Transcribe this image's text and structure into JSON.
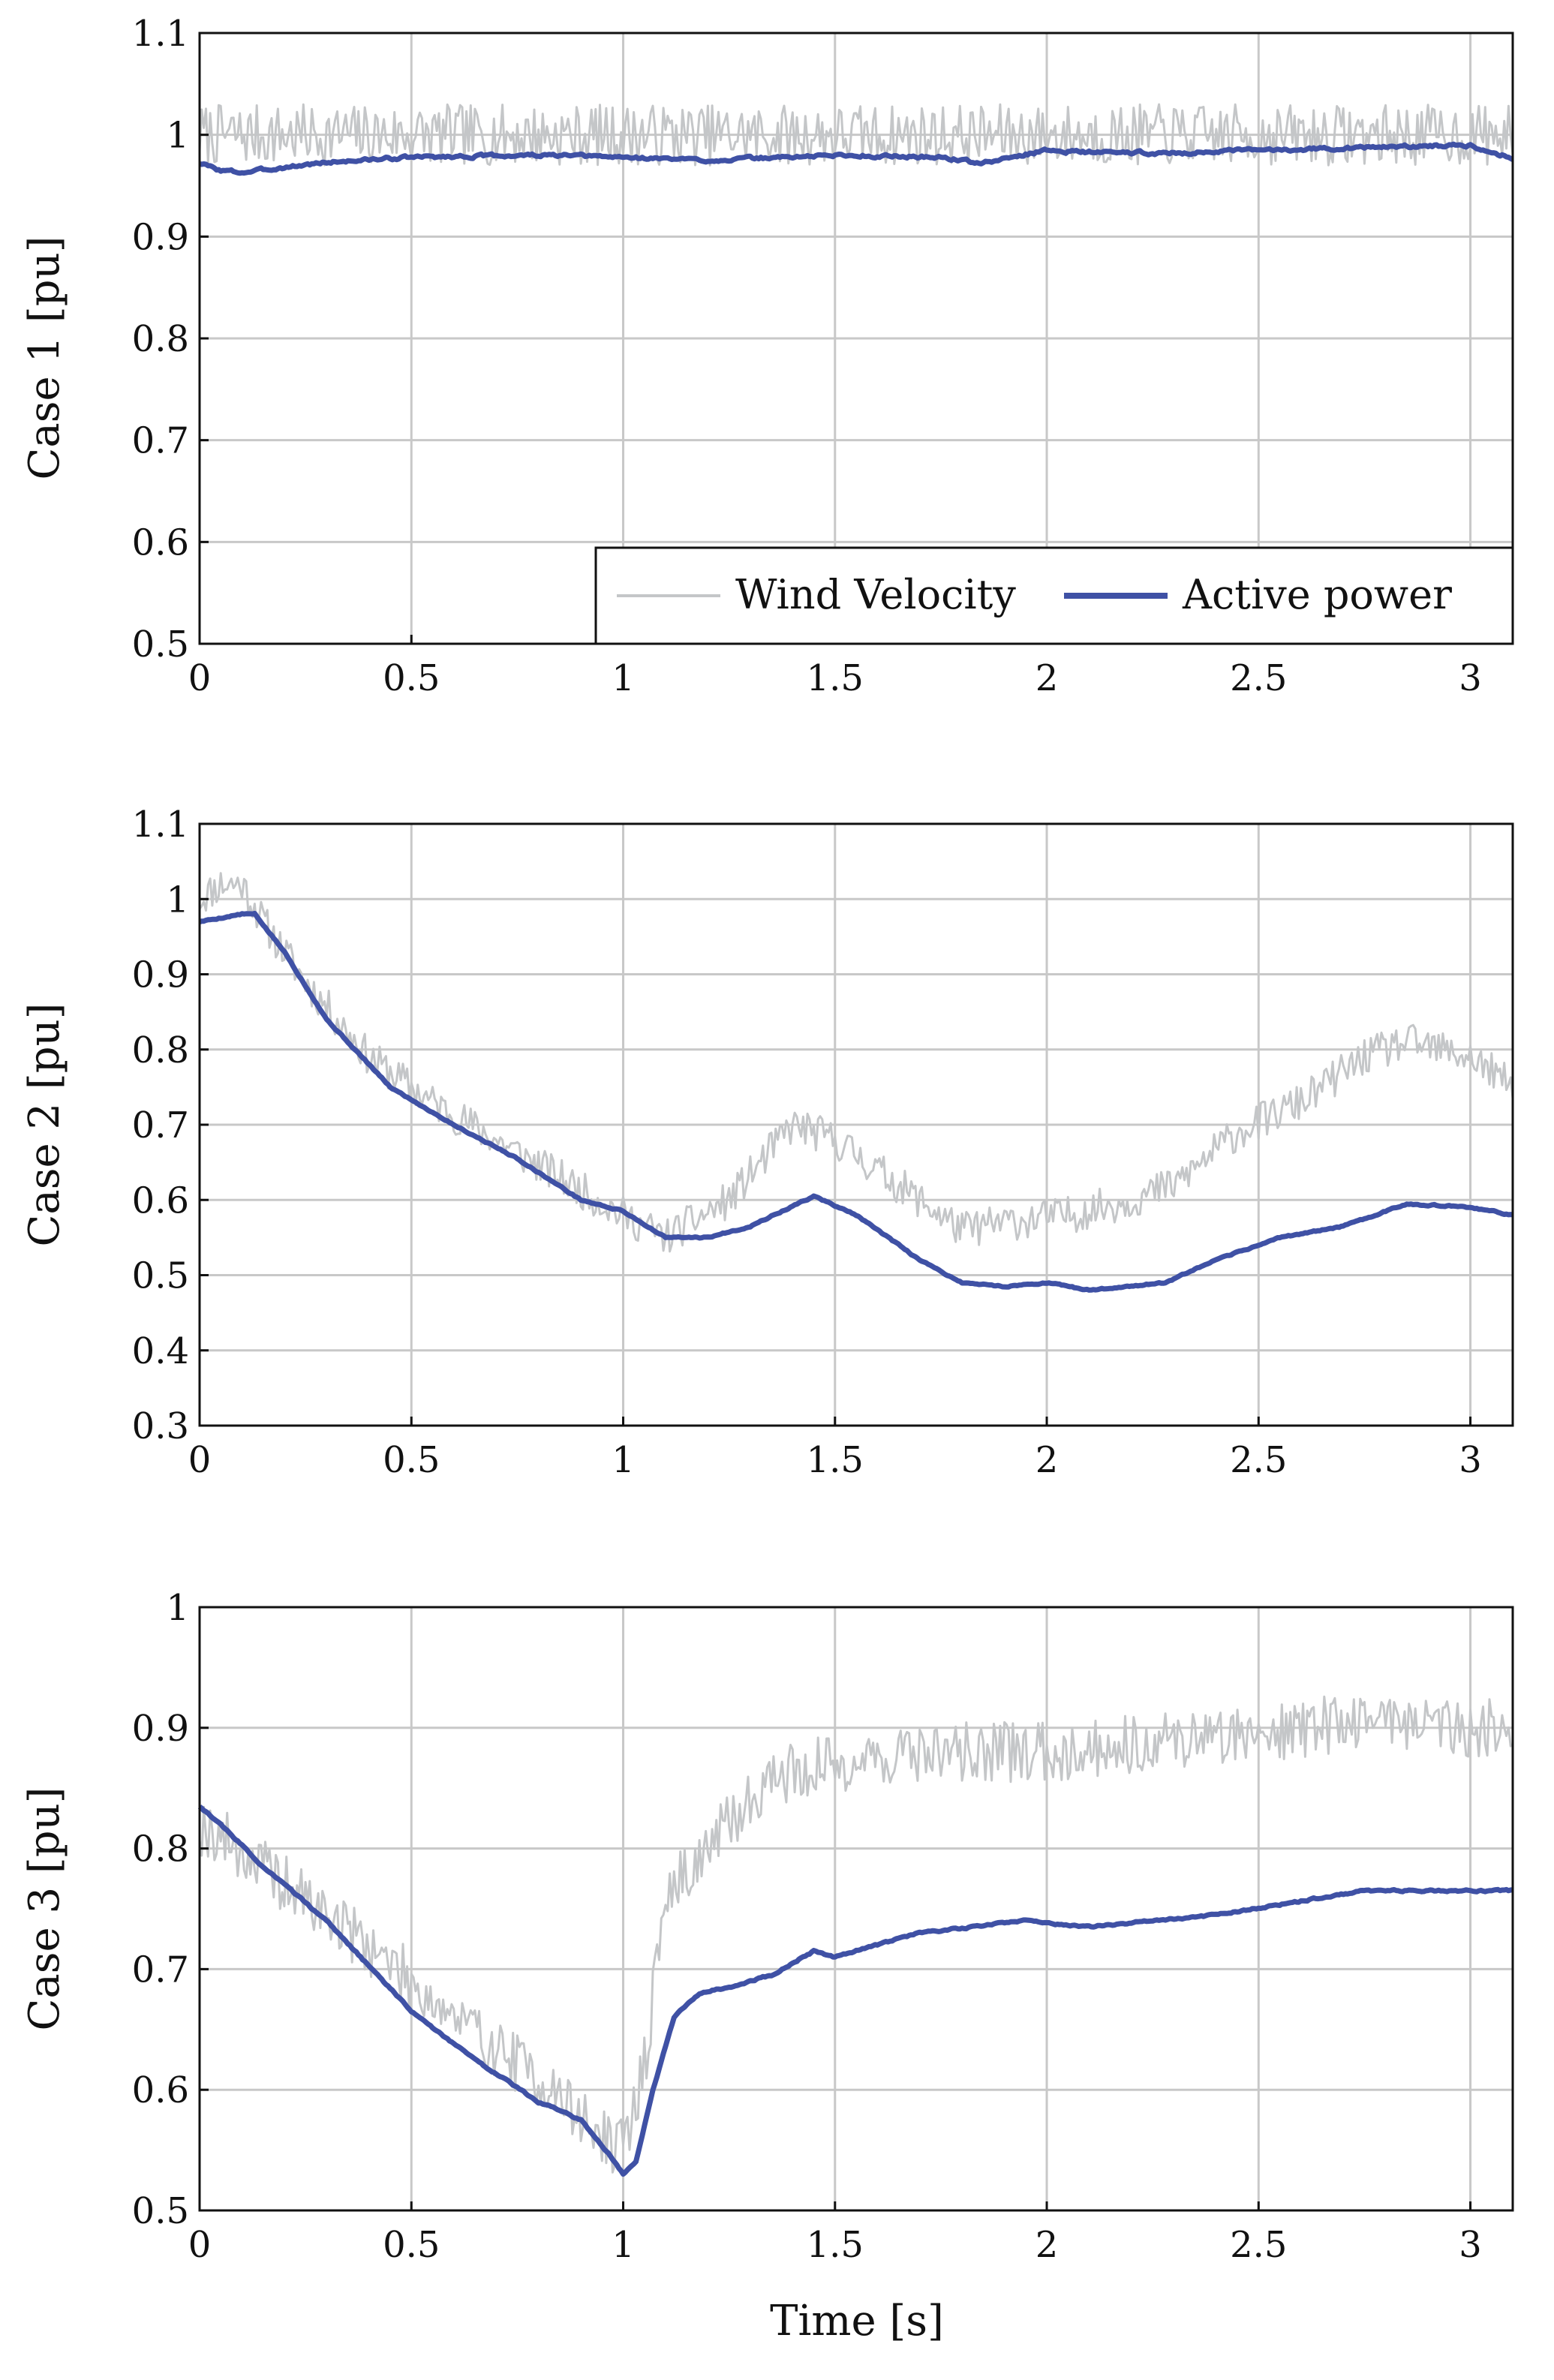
{
  "figure": {
    "xlabel": "Time [s]",
    "colors": {
      "wind": "#c4c6c8",
      "power": "#3f51a5",
      "grid": "#c8c8c8",
      "axis": "#111111"
    },
    "legend": {
      "placement": "bottom-right of top panel",
      "entries": [
        "Wind Velocity",
        "Active power"
      ]
    }
  },
  "chart_data": [
    {
      "type": "line",
      "ylabel": "Case 1 [pu]",
      "xlim": [
        0,
        3.1
      ],
      "ylim": [
        0.5,
        1.1
      ],
      "xticks": [
        0,
        0.5,
        1,
        1.5,
        2,
        2.5,
        3
      ],
      "xtick_labels": [
        "0",
        "0.5",
        "1",
        "1.5",
        "2",
        "2.5",
        "3"
      ],
      "yticks": [
        0.5,
        0.6,
        0.7,
        0.8,
        0.9,
        1,
        1.1
      ],
      "ytick_labels": [
        "0.5",
        "0.6",
        "0.7",
        "0.8",
        "0.9",
        "1",
        "1.1"
      ],
      "grid": true,
      "legend": [
        "Wind Velocity",
        "Active power"
      ],
      "series": [
        {
          "name": "Wind Velocity",
          "color": "#c4c6c8",
          "noise": 0.03,
          "seed": 7,
          "x": [
            0,
            0.2,
            0.5,
            1.0,
            1.5,
            2.0,
            2.5,
            3.0,
            3.1
          ],
          "values": [
            1.0,
            1.0,
            1.0,
            1.0,
            1.0,
            1.0,
            1.0,
            1.0,
            1.0
          ]
        },
        {
          "name": "Active power",
          "color": "#3f51a5",
          "noise": 0.003,
          "seed": 3,
          "x": [
            0,
            0.05,
            0.1,
            0.3,
            0.5,
            0.8,
            1.0,
            1.2,
            1.5,
            1.75,
            1.85,
            2.0,
            2.1,
            2.3,
            2.5,
            2.8,
            3.0,
            3.1
          ],
          "values": [
            0.972,
            0.965,
            0.963,
            0.973,
            0.978,
            0.98,
            0.978,
            0.975,
            0.98,
            0.978,
            0.972,
            0.985,
            0.983,
            0.982,
            0.985,
            0.988,
            0.99,
            0.977
          ]
        }
      ]
    },
    {
      "type": "line",
      "ylabel": "Case 2 [pu]",
      "xlim": [
        0,
        3.1
      ],
      "ylim": [
        0.3,
        1.1
      ],
      "xticks": [
        0,
        0.5,
        1,
        1.5,
        2,
        2.5,
        3
      ],
      "xtick_labels": [
        "0",
        "0.5",
        "1",
        "1.5",
        "2",
        "2.5",
        "3"
      ],
      "yticks": [
        0.3,
        0.4,
        0.5,
        0.6,
        0.7,
        0.8,
        0.9,
        1,
        1.1
      ],
      "ytick_labels": [
        "0.3",
        "0.4",
        "0.5",
        "0.6",
        "0.7",
        "0.8",
        "0.9",
        "1",
        "1.1"
      ],
      "grid": true,
      "series": [
        {
          "name": "Wind Velocity",
          "color": "#c4c6c8",
          "noise": 0.025,
          "seed": 11,
          "x": [
            0,
            0.05,
            0.1,
            0.15,
            0.25,
            0.4,
            0.55,
            0.7,
            0.85,
            1.0,
            1.1,
            1.25,
            1.4,
            1.5,
            1.65,
            1.8,
            1.9,
            2.05,
            2.2,
            2.3,
            2.45,
            2.6,
            2.75,
            2.85,
            3.0,
            3.1
          ],
          "values": [
            1.0,
            1.02,
            1.02,
            0.97,
            0.89,
            0.79,
            0.73,
            0.68,
            0.63,
            0.58,
            0.55,
            0.6,
            0.7,
            0.68,
            0.62,
            0.56,
            0.57,
            0.58,
            0.6,
            0.62,
            0.69,
            0.73,
            0.79,
            0.81,
            0.79,
            0.75
          ]
        },
        {
          "name": "Active power",
          "color": "#3f51a5",
          "noise": 0.002,
          "seed": 5,
          "x": [
            0,
            0.05,
            0.1,
            0.13,
            0.2,
            0.3,
            0.45,
            0.6,
            0.75,
            0.9,
            1.0,
            1.1,
            1.2,
            1.3,
            1.45,
            1.55,
            1.7,
            1.8,
            1.9,
            2.0,
            2.1,
            2.28,
            2.4,
            2.55,
            2.7,
            2.85,
            3.0,
            3.1
          ],
          "values": [
            0.97,
            0.975,
            0.98,
            0.98,
            0.93,
            0.84,
            0.75,
            0.7,
            0.655,
            0.6,
            0.585,
            0.55,
            0.55,
            0.565,
            0.605,
            0.58,
            0.52,
            0.49,
            0.485,
            0.49,
            0.48,
            0.49,
            0.52,
            0.55,
            0.565,
            0.595,
            0.59,
            0.58
          ]
        }
      ]
    },
    {
      "type": "line",
      "ylabel": "Case 3 [pu]",
      "xlim": [
        0,
        3.1
      ],
      "ylim": [
        0.5,
        1.0
      ],
      "xticks": [
        0,
        0.5,
        1,
        1.5,
        2,
        2.5,
        3
      ],
      "xtick_labels": [
        "0",
        "0.5",
        "1",
        "1.5",
        "2",
        "2.5",
        "3"
      ],
      "yticks": [
        0.5,
        0.6,
        0.7,
        0.8,
        0.9,
        1
      ],
      "ytick_labels": [
        "0.5",
        "0.6",
        "0.7",
        "0.8",
        "0.9",
        "1"
      ],
      "grid": true,
      "series": [
        {
          "name": "Wind Velocity",
          "color": "#c4c6c8",
          "noise": 0.025,
          "seed": 19,
          "x": [
            0,
            0.05,
            0.2,
            0.4,
            0.6,
            0.8,
            0.95,
            1.0,
            1.05,
            1.1,
            1.2,
            1.35,
            1.5,
            1.7,
            2.0,
            2.3,
            2.6,
            2.8,
            3.0,
            3.1
          ],
          "values": [
            0.82,
            0.81,
            0.77,
            0.72,
            0.66,
            0.61,
            0.56,
            0.55,
            0.62,
            0.76,
            0.8,
            0.86,
            0.87,
            0.88,
            0.88,
            0.89,
            0.9,
            0.91,
            0.9,
            0.9
          ]
        },
        {
          "name": "Active power",
          "color": "#3f51a5",
          "noise": 0.0015,
          "seed": 2,
          "x": [
            0,
            0.05,
            0.15,
            0.3,
            0.5,
            0.65,
            0.8,
            0.9,
            0.97,
            1.0,
            1.03,
            1.07,
            1.12,
            1.18,
            1.25,
            1.35,
            1.45,
            1.5,
            1.7,
            1.95,
            2.1,
            2.4,
            2.75,
            3.0,
            3.1
          ],
          "values": [
            0.835,
            0.82,
            0.785,
            0.74,
            0.665,
            0.625,
            0.59,
            0.575,
            0.545,
            0.53,
            0.54,
            0.6,
            0.66,
            0.68,
            0.685,
            0.695,
            0.715,
            0.71,
            0.73,
            0.74,
            0.735,
            0.745,
            0.765,
            0.765,
            0.765
          ]
        }
      ]
    }
  ]
}
